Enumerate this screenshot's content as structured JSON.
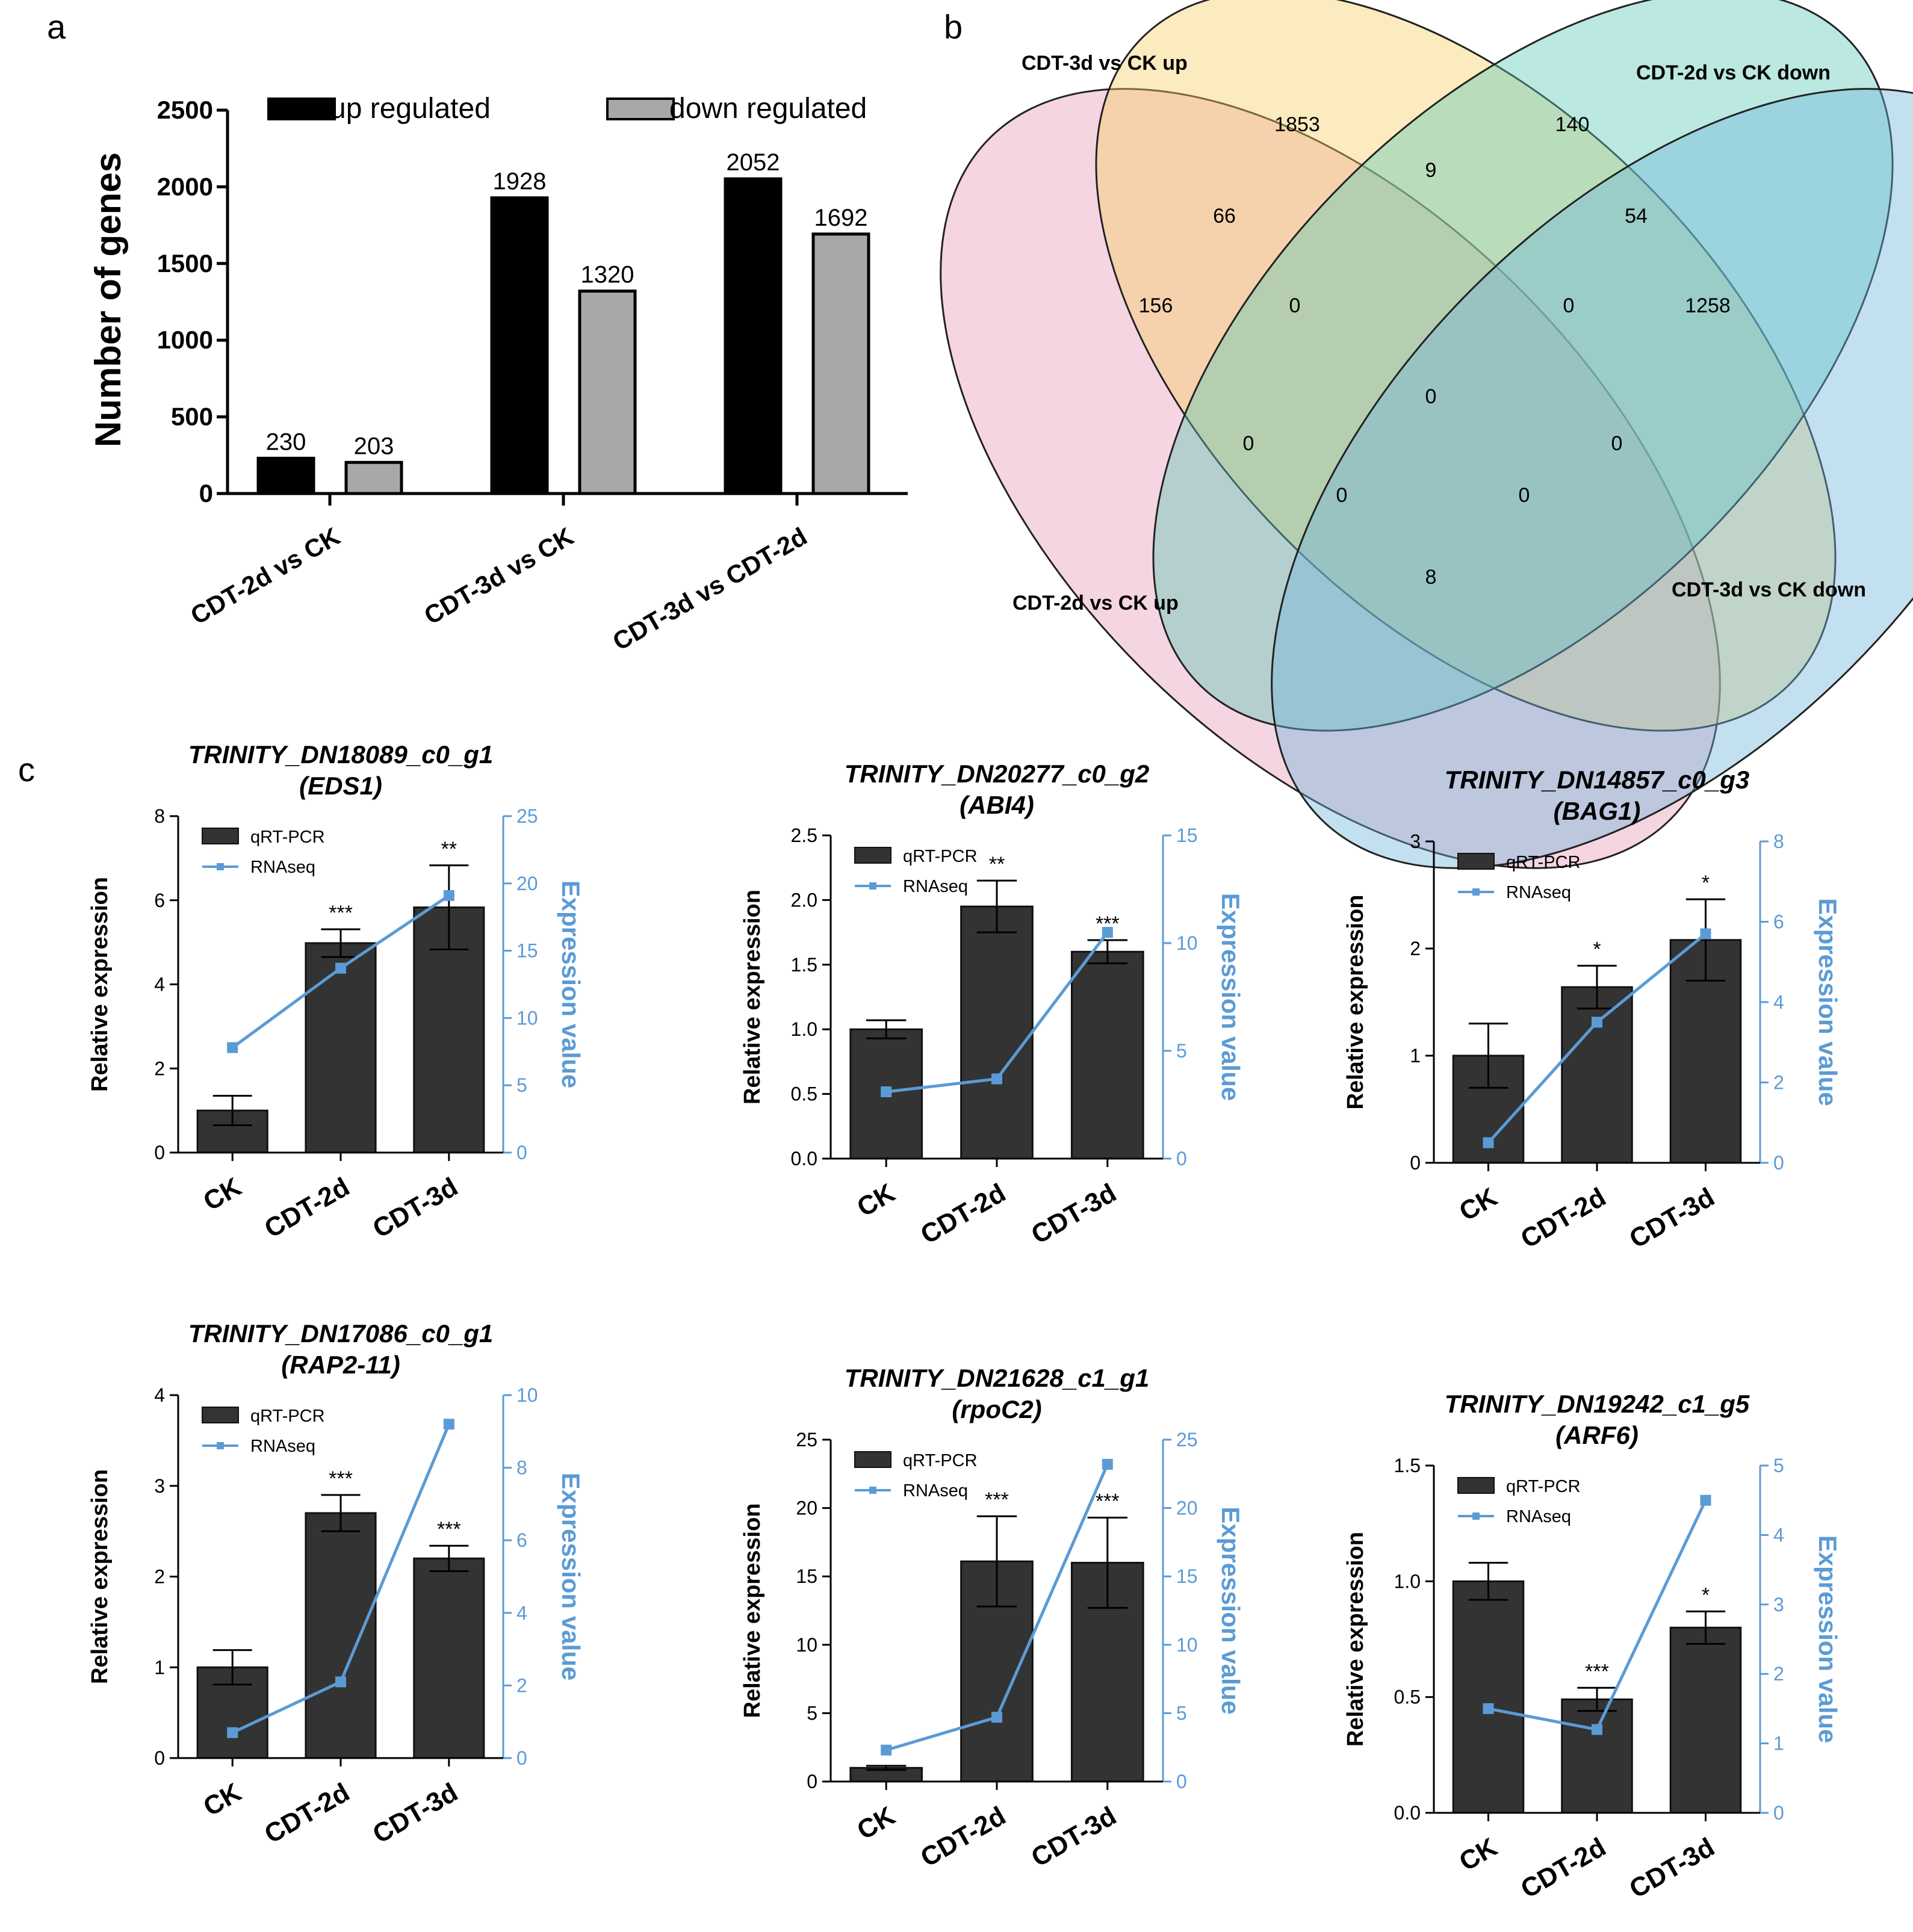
{
  "panel_labels": {
    "a": "a",
    "b": "b",
    "c": "c"
  },
  "colors": {
    "up": "#000000",
    "down": "#a8a8a8",
    "bar_c": "#333333",
    "rnaseq": "#5b9bd5",
    "venn_yellow": "#f5cf63",
    "venn_teal": "#5cc9b6",
    "venn_blue": "#6fb4dc",
    "venn_pink": "#e89bb8"
  },
  "chart_data": [
    {
      "id": "a",
      "type": "bar",
      "title": "",
      "ylabel": "Number of genes",
      "ylim": [
        0,
        2500
      ],
      "yticks": [
        "0",
        "500",
        "1000",
        "1500",
        "2000",
        "2500"
      ],
      "categories": [
        "CDT-2d vs CK",
        "CDT-3d vs CK",
        "CDT-3d vs CDT-2d"
      ],
      "series": [
        {
          "name": "up regulated",
          "values": [
            230,
            1928,
            2052
          ],
          "labels": [
            "230",
            "1928",
            "2052"
          ]
        },
        {
          "name": "down regulated",
          "values": [
            203,
            1320,
            1692
          ],
          "labels": [
            "203",
            "1320",
            "1692"
          ]
        }
      ],
      "legend": "top"
    },
    {
      "id": "b",
      "type": "venn",
      "sets": [
        "CDT-3d vs CK up",
        "CDT-2d vs CK down",
        "CDT-3d vs CK down",
        "CDT-2d vs CK up"
      ],
      "regions": [
        {
          "sets": "3d-up only",
          "value": "1853"
        },
        {
          "sets": "2d-down only",
          "value": "140"
        },
        {
          "sets": "3d-down only",
          "value": "1258"
        },
        {
          "sets": "2d-up only",
          "value": "156"
        },
        {
          "sets": "3d-up & 2d-down",
          "value": "9"
        },
        {
          "sets": "3d-up & 2d-up",
          "value": "66"
        },
        {
          "sets": "2d-down & 3d-down",
          "value": "54"
        },
        {
          "sets": "3d-up & 2d-down & 2d-up",
          "value": "0"
        },
        {
          "sets": "3d-up & 2d-down & 3d-down",
          "value": "0"
        },
        {
          "sets": "all four",
          "value": "0"
        },
        {
          "sets": "2d-up & 2d-down",
          "value": "0"
        },
        {
          "sets": "3d-up & 3d-down",
          "value": "0"
        },
        {
          "sets": "2d-up & 2d-down & 3d-down",
          "value": "0"
        },
        {
          "sets": "3d-up & 3d-down & 2d-up",
          "value": "0"
        },
        {
          "sets": "2d-up & 3d-down",
          "value": "8"
        }
      ]
    },
    {
      "id": "c1",
      "type": "bar+line",
      "title": "TRINITY_DN18089_c0_g1",
      "subtitle": "(EDS1)",
      "ylabel": "Relative expression",
      "y2label": "Expression value",
      "ylim": [
        0,
        8
      ],
      "yticks": [
        "0",
        "2",
        "4",
        "6",
        "8"
      ],
      "y2lim": [
        0,
        25
      ],
      "y2ticks": [
        "0",
        "5",
        "10",
        "15",
        "20",
        "25"
      ],
      "categories": [
        "CK",
        "CDT-2d",
        "CDT-3d"
      ],
      "bars": {
        "name": "qRT-PCR",
        "values": [
          1.0,
          4.98,
          5.83
        ],
        "err": [
          0.35,
          0.33,
          1.0
        ]
      },
      "line": {
        "name": "RNAseq",
        "values": [
          7.8,
          13.7,
          19.1
        ]
      },
      "sig": [
        "",
        "***",
        "**"
      ]
    },
    {
      "id": "c2",
      "type": "bar+line",
      "title": "TRINITY_DN20277_c0_g2",
      "subtitle": "(ABI4)",
      "ylabel": "Relative expression",
      "y2label": "Expression value",
      "ylim": [
        0,
        2.5
      ],
      "yticks": [
        "0.0",
        "0.5",
        "1.0",
        "1.5",
        "2.0",
        "2.5"
      ],
      "y2lim": [
        0,
        15
      ],
      "y2ticks": [
        "0",
        "5",
        "10",
        "15"
      ],
      "categories": [
        "CK",
        "CDT-2d",
        "CDT-3d"
      ],
      "bars": {
        "name": "qRT-PCR",
        "values": [
          1.0,
          1.95,
          1.6
        ],
        "err": [
          0.07,
          0.2,
          0.09
        ]
      },
      "line": {
        "name": "RNAseq",
        "values": [
          3.1,
          3.7,
          10.5
        ]
      },
      "sig": [
        "",
        "**",
        "***"
      ]
    },
    {
      "id": "c3",
      "type": "bar+line",
      "title": "TRINITY_DN14857_c0_g3",
      "subtitle": "(BAG1)",
      "ylabel": "Relative expression",
      "y2label": "Expression value",
      "ylim": [
        0,
        3
      ],
      "yticks": [
        "0",
        "1",
        "2",
        "3"
      ],
      "y2lim": [
        0,
        8
      ],
      "y2ticks": [
        "0",
        "2",
        "4",
        "6",
        "8"
      ],
      "categories": [
        "CK",
        "CDT-2d",
        "CDT-3d"
      ],
      "bars": {
        "name": "qRT-PCR",
        "values": [
          1.0,
          1.64,
          2.08
        ],
        "err": [
          0.3,
          0.2,
          0.38
        ]
      },
      "line": {
        "name": "RNAseq",
        "values": [
          0.5,
          3.5,
          5.7
        ]
      },
      "sig": [
        "",
        "*",
        "*"
      ]
    },
    {
      "id": "c4",
      "type": "bar+line",
      "title": "TRINITY_DN17086_c0_g1",
      "subtitle": "(RAP2-11)",
      "ylabel": "Relative expression",
      "y2label": "Expression value",
      "ylim": [
        0,
        4
      ],
      "yticks": [
        "0",
        "1",
        "2",
        "3",
        "4"
      ],
      "y2lim": [
        0,
        10
      ],
      "y2ticks": [
        "0",
        "2",
        "4",
        "6",
        "8",
        "10"
      ],
      "categories": [
        "CK",
        "CDT-2d",
        "CDT-3d"
      ],
      "bars": {
        "name": "qRT-PCR",
        "values": [
          1.0,
          2.7,
          2.2
        ],
        "err": [
          0.19,
          0.2,
          0.14
        ]
      },
      "line": {
        "name": "RNAseq",
        "values": [
          0.7,
          2.1,
          9.2
        ]
      },
      "sig": [
        "",
        "***",
        "***"
      ]
    },
    {
      "id": "c5",
      "type": "bar+line",
      "title": "TRINITY_DN21628_c1_g1",
      "subtitle": "(rpoC2)",
      "ylabel": "Relative expression",
      "y2label": "Expression value",
      "ylim": [
        0,
        25
      ],
      "yticks": [
        "0",
        "5",
        "10",
        "15",
        "20",
        "25"
      ],
      "y2lim": [
        0,
        25
      ],
      "y2ticks": [
        "0",
        "5",
        "10",
        "15",
        "20",
        "25"
      ],
      "categories": [
        "CK",
        "CDT-2d",
        "CDT-3d"
      ],
      "bars": {
        "name": "qRT-PCR",
        "values": [
          1.0,
          16.1,
          16.0
        ],
        "err": [
          0.15,
          3.3,
          3.3
        ]
      },
      "line": {
        "name": "RNAseq",
        "values": [
          2.3,
          4.7,
          23.2
        ]
      },
      "sig": [
        "",
        "***",
        "***"
      ]
    },
    {
      "id": "c6",
      "type": "bar+line",
      "title": "TRINITY_DN19242_c1_g5",
      "subtitle": "(ARF6)",
      "ylabel": "Relative expression",
      "y2label": "Expression value",
      "ylim": [
        0,
        1.5
      ],
      "yticks": [
        "0.0",
        "0.5",
        "1.0",
        "1.5"
      ],
      "y2lim": [
        0,
        5
      ],
      "y2ticks": [
        "0",
        "1",
        "2",
        "3",
        "4",
        "5"
      ],
      "categories": [
        "CK",
        "CDT-2d",
        "CDT-3d"
      ],
      "bars": {
        "name": "qRT-PCR",
        "values": [
          1.0,
          0.49,
          0.8
        ],
        "err": [
          0.08,
          0.05,
          0.07
        ]
      },
      "line": {
        "name": "RNAseq",
        "values": [
          1.5,
          1.2,
          4.5
        ]
      },
      "sig": [
        "",
        "***",
        "*"
      ]
    }
  ]
}
